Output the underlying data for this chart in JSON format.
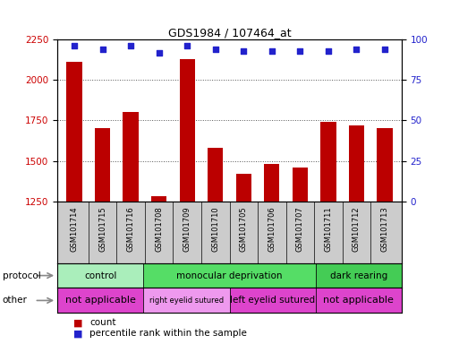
{
  "title": "GDS1984 / 107464_at",
  "samples": [
    "GSM101714",
    "GSM101715",
    "GSM101716",
    "GSM101708",
    "GSM101709",
    "GSM101710",
    "GSM101705",
    "GSM101706",
    "GSM101707",
    "GSM101711",
    "GSM101712",
    "GSM101713"
  ],
  "counts": [
    2110,
    1700,
    1800,
    1280,
    2130,
    1580,
    1420,
    1480,
    1460,
    1740,
    1720,
    1700
  ],
  "percentile": [
    96,
    94,
    96,
    92,
    96,
    94,
    93,
    93,
    93,
    93,
    94,
    94
  ],
  "ylim_left": [
    1250,
    2250
  ],
  "ylim_right": [
    0,
    100
  ],
  "yticks_left": [
    1250,
    1500,
    1750,
    2000,
    2250
  ],
  "yticks_right": [
    0,
    25,
    50,
    75,
    100
  ],
  "bar_color": "#bb0000",
  "dot_color": "#2222cc",
  "protocol_groups": [
    {
      "label": "control",
      "start": 0,
      "end": 3,
      "color": "#aaeebb"
    },
    {
      "label": "monocular deprivation",
      "start": 3,
      "end": 9,
      "color": "#55dd66"
    },
    {
      "label": "dark rearing",
      "start": 9,
      "end": 12,
      "color": "#44cc55"
    }
  ],
  "other_groups": [
    {
      "label": "not applicable",
      "start": 0,
      "end": 3,
      "color": "#dd44cc"
    },
    {
      "label": "right eyelid sutured",
      "start": 3,
      "end": 6,
      "color": "#ee99ee"
    },
    {
      "label": "left eyelid sutured",
      "start": 6,
      "end": 9,
      "color": "#dd44cc"
    },
    {
      "label": "not applicable",
      "start": 9,
      "end": 12,
      "color": "#dd44cc"
    }
  ],
  "legend_count_label": "count",
  "legend_pct_label": "percentile rank within the sample",
  "label_protocol": "protocol",
  "label_other": "other",
  "bg_color": "#ffffff",
  "tick_color_left": "#cc0000",
  "tick_color_right": "#2222cc",
  "grid_color": "#555555",
  "sample_bg_color": "#cccccc",
  "border_color": "#000000"
}
